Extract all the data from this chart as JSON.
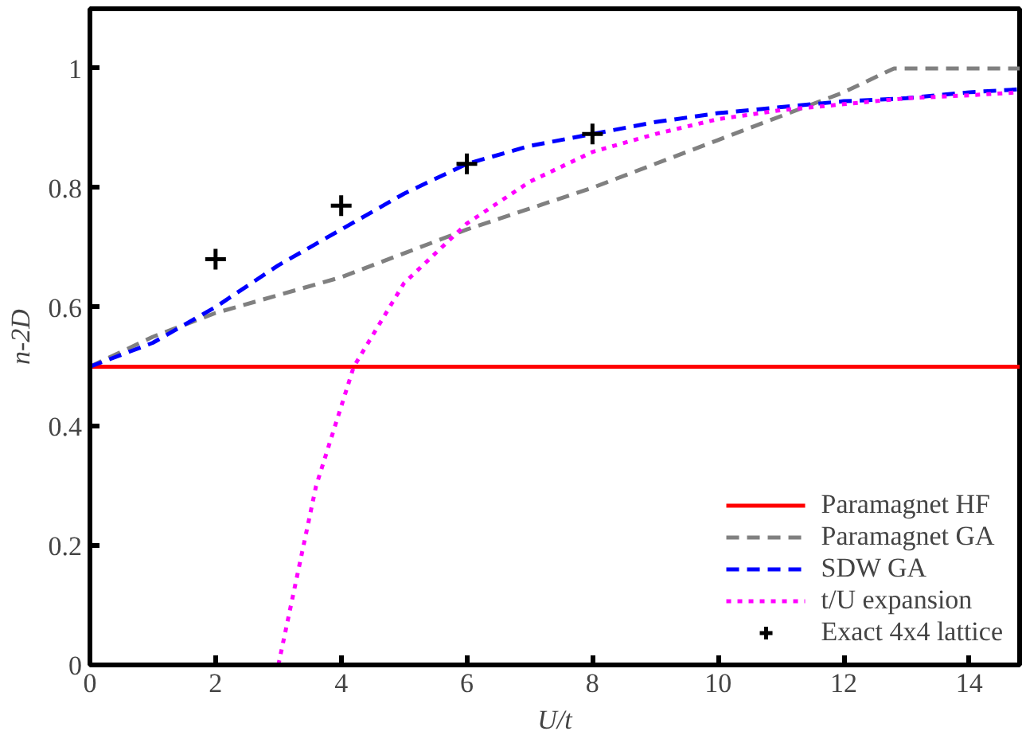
{
  "chart_data": {
    "type": "line",
    "xlabel": "U/t",
    "ylabel": "n-2D",
    "xlim": [
      0,
      14.8
    ],
    "ylim": [
      0,
      1.1
    ],
    "xticks": [
      0,
      2,
      4,
      6,
      8,
      10,
      12,
      14
    ],
    "yticks": [
      0,
      0.2,
      0.4,
      0.6,
      0.8,
      1
    ],
    "grid": false,
    "legend": "bottom right",
    "series": [
      {
        "name": "Paramagnet HF",
        "color": "#ff0000",
        "line_style": "solid",
        "x": [
          0,
          14.8
        ],
        "values": [
          0.5,
          0.5
        ]
      },
      {
        "name": "Paramagnet GA",
        "color": "#808080",
        "line_style": "dashed",
        "x": [
          0,
          1,
          2,
          4,
          6,
          8,
          10,
          12,
          12.8,
          14.8
        ],
        "values": [
          0.5,
          0.55,
          0.59,
          0.65,
          0.73,
          0.8,
          0.88,
          0.96,
          1.0,
          1.0
        ]
      },
      {
        "name": "SDW GA",
        "color": "#0000ff",
        "line_style": "dashed",
        "x": [
          0,
          1,
          2,
          3,
          4,
          5,
          6,
          7,
          8,
          9,
          10,
          11,
          12,
          13,
          14,
          14.8
        ],
        "values": [
          0.5,
          0.54,
          0.6,
          0.67,
          0.73,
          0.79,
          0.84,
          0.87,
          0.89,
          0.91,
          0.925,
          0.935,
          0.945,
          0.95,
          0.96,
          0.965
        ]
      },
      {
        "name": "t/U expansion",
        "color": "#ff00ff",
        "line_style": "dotted",
        "x": [
          3,
          3.3,
          3.6,
          4.2,
          5,
          6,
          7,
          8,
          9,
          10,
          11,
          12,
          13,
          14,
          14.8
        ],
        "values": [
          0,
          0.15,
          0.3,
          0.5,
          0.64,
          0.74,
          0.81,
          0.86,
          0.89,
          0.915,
          0.93,
          0.94,
          0.95,
          0.955,
          0.96
        ]
      },
      {
        "name": "Exact 4x4 lattice",
        "type": "scatter",
        "marker": "cross",
        "color": "#000000",
        "x": [
          2,
          4,
          6,
          8
        ],
        "values": [
          0.68,
          0.77,
          0.84,
          0.89
        ]
      }
    ]
  }
}
